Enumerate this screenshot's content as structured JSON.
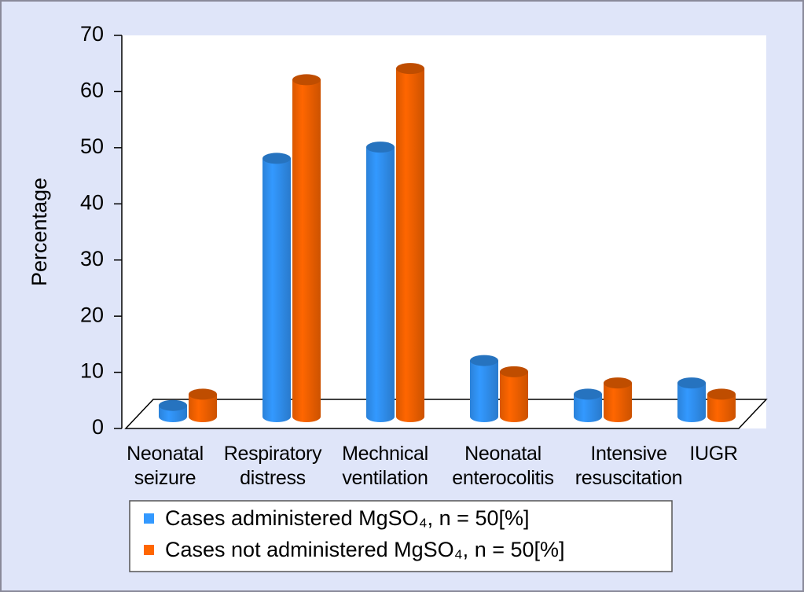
{
  "chart_data": {
    "type": "bar3d",
    "y_axis_label": "Percentage",
    "categories": [
      "Neonatal seizure",
      "Respiratory distress",
      "Mechnical ventilation",
      "Neonatal enterocolitis",
      "Intensive resuscitation",
      "IUGR"
    ],
    "series": [
      {
        "name": "Cases administered MgSO₄, n = 50[%]",
        "color": "#3399ff",
        "values": [
          2,
          46,
          48,
          10,
          4,
          6
        ]
      },
      {
        "name": "Cases not administered MgSO₄, n = 50[%]",
        "color": "#ff6600",
        "values": [
          4,
          60,
          62,
          8,
          6,
          4
        ]
      }
    ],
    "ylim": [
      0,
      70
    ],
    "yticks": [
      0,
      10,
      20,
      30,
      40,
      50,
      60,
      70
    ]
  }
}
